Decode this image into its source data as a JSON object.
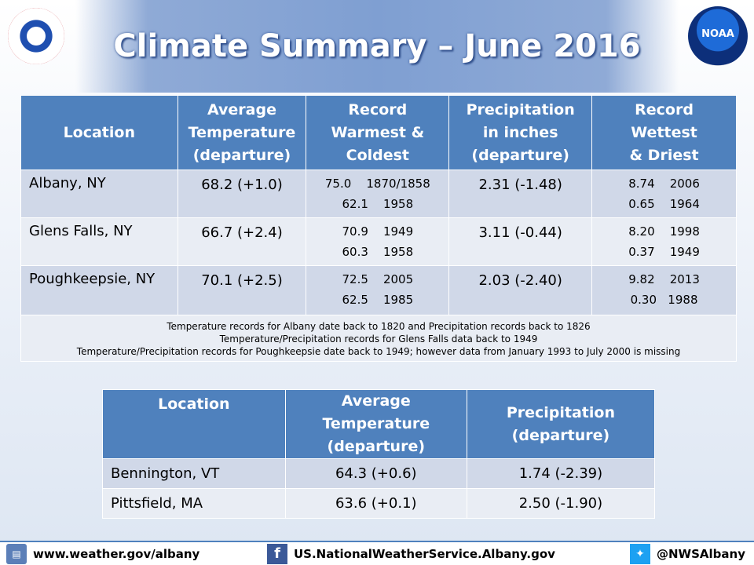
{
  "header": {
    "title": "Climate Summary – June 2016",
    "noaa_text": "NOAA"
  },
  "table1": {
    "headers": [
      "Location",
      "Average Temperature (departure)",
      "Record Warmest & Coldest",
      "Precipitation in inches (departure)",
      "Record Wettest & Driest"
    ],
    "rows": [
      {
        "location": "Albany, NY",
        "temp": "68.2   (+1.0)",
        "rec_warm": "75.0    1870/1858",
        "rec_cold": "62.1    1958",
        "precip": "2.31   (-1.48)",
        "rec_wet": "8.74    2006",
        "rec_dry": "0.65    1964"
      },
      {
        "location": "Glens Falls, NY",
        "temp": "66.7   (+2.4)",
        "rec_warm": "70.9    1949",
        "rec_cold": "60.3    1958",
        "precip": "3.11  (-0.44)",
        "rec_wet": "8.20    1998",
        "rec_dry": "0.37    1949"
      },
      {
        "location": "Poughkeepsie, NY",
        "temp": "70.1   (+2.5)",
        "rec_warm": "72.5    2005",
        "rec_cold": "62.5    1985",
        "precip": "2.03  (-2.40)",
        "rec_wet": "9.82    2013",
        "rec_dry": "0.30   1988"
      }
    ],
    "notes": [
      "Temperature records for Albany date back to 1820 and Precipitation records back to 1826",
      "Temperature/Precipitation  records for Glens Falls data back to 1949",
      "Temperature/Precipitation  records for Poughkeepsie date back to 1949; however data from January 1993 to July 2000 is missing"
    ]
  },
  "table2": {
    "headers": [
      "Location",
      "Average Temperature (departure)",
      "Precipitation (departure)"
    ],
    "rows": [
      {
        "location": "Bennington, VT",
        "temp": "64.3   (+0.6)",
        "precip": "1.74   (-2.39)"
      },
      {
        "location": "Pittsfield, MA",
        "temp": "63.6   (+0.1)",
        "precip": "2.50   (-1.90)"
      }
    ]
  },
  "footer": {
    "website": "www.weather.gov/albany",
    "facebook": "US.NationalWeatherService.Albany.gov",
    "twitter": "@NWSAlbany"
  },
  "colors": {
    "header_blue": "#4f81bd",
    "row_dark": "#d0d8e8",
    "row_light": "#e9edf4"
  }
}
